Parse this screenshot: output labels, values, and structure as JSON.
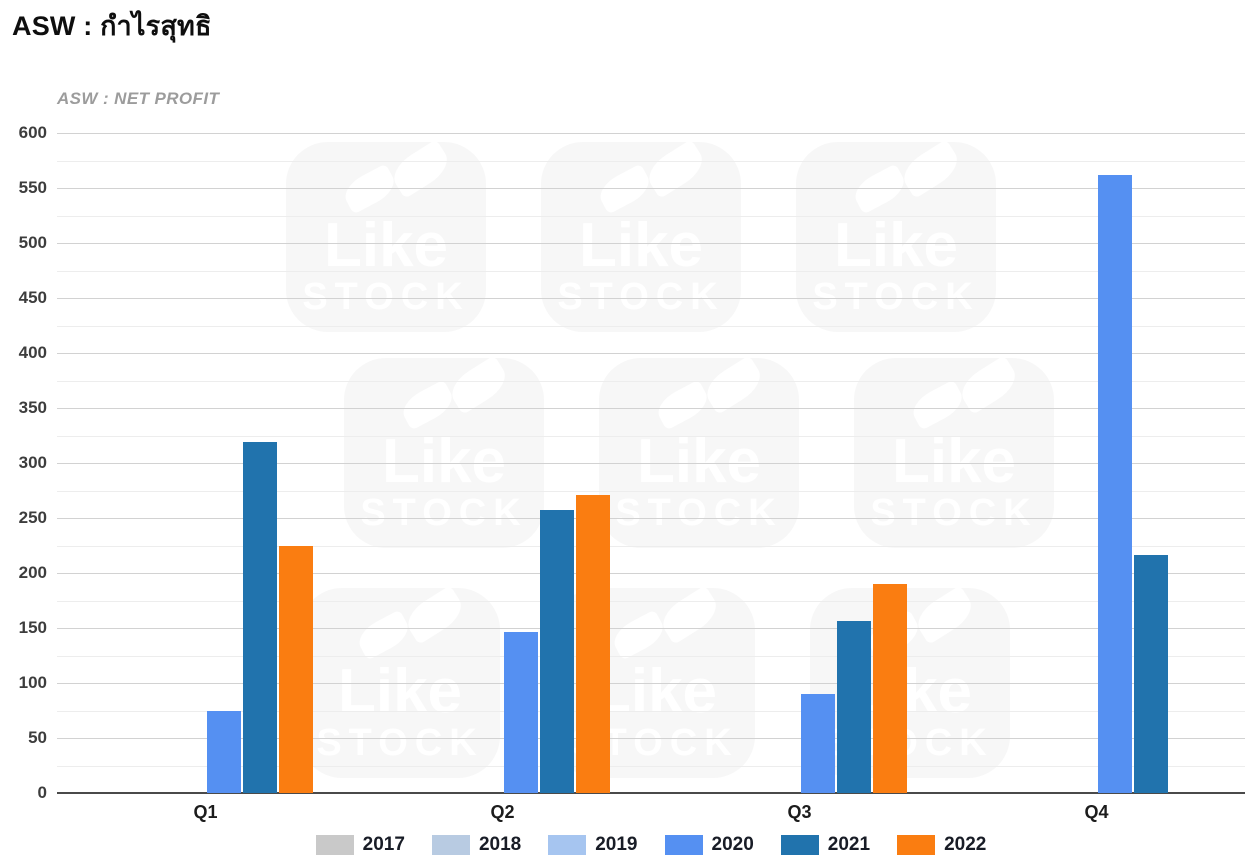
{
  "header": {
    "title": "ASW : กำไรสุทธิ"
  },
  "watermark": {
    "line1": "Like",
    "line2": "STOCK"
  },
  "chart_data": {
    "type": "bar",
    "title": "ASW : NET PROFIT",
    "categories": [
      "Q1",
      "Q2",
      "Q3",
      "Q4"
    ],
    "series": [
      {
        "name": "2017",
        "color": "#c9c9c9",
        "values": [
          null,
          null,
          null,
          null
        ]
      },
      {
        "name": "2018",
        "color": "#b8cbe2",
        "values": [
          null,
          null,
          null,
          null
        ]
      },
      {
        "name": "2019",
        "color": "#a6c5f0",
        "values": [
          null,
          null,
          null,
          null
        ]
      },
      {
        "name": "2020",
        "color": "#5590f2",
        "values": [
          75,
          146,
          90,
          562
        ]
      },
      {
        "name": "2021",
        "color": "#2173ad",
        "values": [
          319,
          257,
          156,
          216
        ]
      },
      {
        "name": "2022",
        "color": "#fa7d11",
        "values": [
          225,
          271,
          190,
          null
        ]
      }
    ],
    "ylabel": "",
    "xlabel": "",
    "ylim": [
      0,
      600
    ],
    "yticks": [
      0,
      50,
      100,
      150,
      200,
      250,
      300,
      350,
      400,
      450,
      500,
      550,
      600
    ],
    "minor_tick_step": 25,
    "grid": true,
    "legend_position": "bottom"
  }
}
